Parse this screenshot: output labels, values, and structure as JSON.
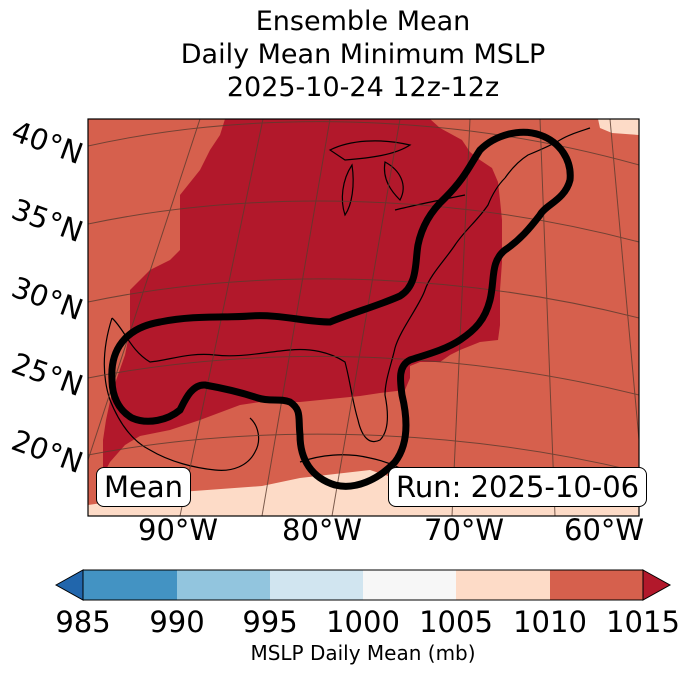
{
  "title": {
    "line1": "Ensemble Mean",
    "line2": "Daily Mean Minimum MSLP",
    "line3": "2025-10-24 12z-12z"
  },
  "map": {
    "lat_labels": [
      "40°N",
      "35°N",
      "30°N",
      "25°N",
      "20°N"
    ],
    "lon_labels": [
      "90°W",
      "80°W",
      "70°W",
      "60°W"
    ],
    "colors": {
      "dark_red": "#b2182b",
      "red": "#d6604d",
      "salmon": "#fddbc7",
      "contour": "#000000",
      "grid": "#5a3b2e"
    }
  },
  "boxes": {
    "left": "Mean",
    "right": "Run: 2025-10-06"
  },
  "colorbar": {
    "ticks": [
      "985",
      "990",
      "995",
      "1000",
      "1005",
      "1010",
      "1015"
    ],
    "colors": [
      "#2166ac",
      "#4393c3",
      "#92c5de",
      "#d1e5f0",
      "#f7f7f7",
      "#fddbc7",
      "#d6604d",
      "#b2182b"
    ],
    "label": "MSLP Daily Mean (mb)"
  }
}
